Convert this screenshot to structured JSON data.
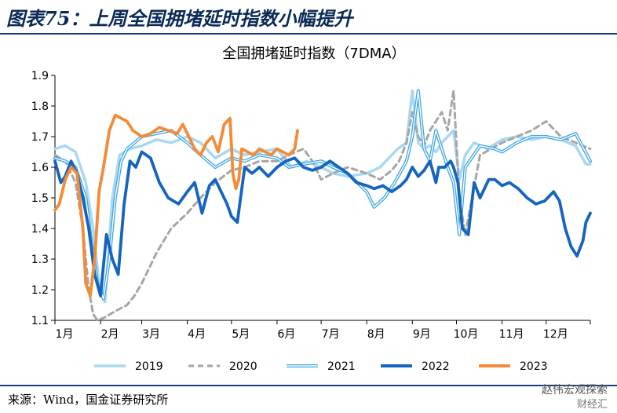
{
  "figure_title": "图表75：上周全国拥堵延时指数小幅提升",
  "source": "来源：Wind，国金证券研究所",
  "watermark": {
    "line1": "赵伟宏观探索",
    "line2": "财经汇"
  },
  "colors": {
    "2019": "#a9d8f2",
    "2020": "#a6a6a6",
    "2021": "#3fa7e0",
    "2022": "#1565c0",
    "2023": "#f28c38"
  },
  "chart_data": {
    "type": "line",
    "title": "全国拥堵延时指数（7DMA）",
    "xlabel": "",
    "ylabel": "",
    "x_unit": "day_of_year",
    "month_ticks": [
      {
        "label": "1月",
        "day": 1
      },
      {
        "label": "2月",
        "day": 32
      },
      {
        "label": "3月",
        "day": 60
      },
      {
        "label": "4月",
        "day": 91
      },
      {
        "label": "5月",
        "day": 121
      },
      {
        "label": "6月",
        "day": 152
      },
      {
        "label": "7月",
        "day": 182
      },
      {
        "label": "8月",
        "day": 213
      },
      {
        "label": "9月",
        "day": 244
      },
      {
        "label": "10月",
        "day": 274
      },
      {
        "label": "11月",
        "day": 305
      },
      {
        "label": "12月",
        "day": 335
      }
    ],
    "ylim": [
      1.1,
      1.9
    ],
    "yticks": [
      "1.1",
      "1.2",
      "1.3",
      "1.4",
      "1.5",
      "1.6",
      "1.7",
      "1.8",
      "1.9"
    ],
    "legend_position": "bottom",
    "series": [
      {
        "name": "2019",
        "style": "solid-light",
        "x": [
          1,
          8,
          15,
          22,
          27,
          31,
          35,
          40,
          45,
          52,
          60,
          70,
          80,
          91,
          100,
          110,
          121,
          130,
          140,
          152,
          162,
          172,
          182,
          190,
          200,
          213,
          222,
          228,
          234,
          240,
          244,
          248,
          252,
          256,
          260,
          264,
          268,
          272,
          276,
          280,
          286,
          295,
          305,
          315,
          325,
          335,
          345,
          355,
          362,
          365
        ],
        "y": [
          1.66,
          1.67,
          1.65,
          1.55,
          1.4,
          1.22,
          1.16,
          1.5,
          1.64,
          1.66,
          1.67,
          1.69,
          1.68,
          1.7,
          1.68,
          1.63,
          1.66,
          1.64,
          1.65,
          1.66,
          1.6,
          1.62,
          1.6,
          1.58,
          1.57,
          1.58,
          1.6,
          1.63,
          1.66,
          1.68,
          1.85,
          1.68,
          1.66,
          1.67,
          1.65,
          1.68,
          1.7,
          1.72,
          1.56,
          1.64,
          1.68,
          1.66,
          1.69,
          1.7,
          1.69,
          1.7,
          1.69,
          1.67,
          1.61,
          1.61
        ]
      },
      {
        "name": "2020",
        "style": "dashed",
        "x": [
          1,
          8,
          15,
          20,
          24,
          27,
          30,
          35,
          42,
          50,
          55,
          60,
          70,
          80,
          91,
          100,
          110,
          121,
          130,
          140,
          152,
          160,
          170,
          176,
          182,
          190,
          200,
          213,
          222,
          230,
          235,
          240,
          244,
          248,
          252,
          256,
          260,
          264,
          268,
          272,
          276,
          280,
          290,
          305,
          315,
          325,
          335,
          345,
          355,
          365
        ],
        "y": [
          1.64,
          1.62,
          1.55,
          1.4,
          1.2,
          1.12,
          1.1,
          1.11,
          1.13,
          1.15,
          1.18,
          1.22,
          1.32,
          1.4,
          1.45,
          1.5,
          1.55,
          1.59,
          1.6,
          1.62,
          1.62,
          1.64,
          1.66,
          1.62,
          1.56,
          1.58,
          1.6,
          1.58,
          1.56,
          1.59,
          1.62,
          1.68,
          1.78,
          1.7,
          1.67,
          1.72,
          1.75,
          1.78,
          1.72,
          1.85,
          1.5,
          1.38,
          1.64,
          1.68,
          1.7,
          1.72,
          1.75,
          1.7,
          1.68,
          1.66
        ]
      },
      {
        "name": "2021",
        "style": "double",
        "x": [
          1,
          8,
          15,
          22,
          26,
          30,
          34,
          38,
          42,
          46,
          50,
          55,
          60,
          70,
          80,
          91,
          100,
          110,
          121,
          130,
          140,
          152,
          160,
          170,
          182,
          190,
          200,
          213,
          218,
          225,
          232,
          240,
          244,
          248,
          252,
          256,
          260,
          264,
          268,
          272,
          276,
          280,
          290,
          300,
          305,
          315,
          325,
          335,
          345,
          355,
          365
        ],
        "y": [
          1.63,
          1.62,
          1.6,
          1.5,
          1.35,
          1.22,
          1.17,
          1.3,
          1.5,
          1.62,
          1.66,
          1.68,
          1.7,
          1.71,
          1.72,
          1.68,
          1.64,
          1.6,
          1.63,
          1.62,
          1.64,
          1.63,
          1.6,
          1.61,
          1.62,
          1.6,
          1.58,
          1.52,
          1.47,
          1.5,
          1.55,
          1.62,
          1.7,
          1.85,
          1.66,
          1.62,
          1.72,
          1.66,
          1.6,
          1.55,
          1.38,
          1.6,
          1.67,
          1.66,
          1.65,
          1.68,
          1.7,
          1.7,
          1.69,
          1.71,
          1.62
        ]
      },
      {
        "name": "2022",
        "style": "solid-bold",
        "x": [
          1,
          5,
          8,
          12,
          16,
          20,
          24,
          28,
          32,
          36,
          40,
          44,
          48,
          52,
          56,
          60,
          66,
          72,
          78,
          85,
          91,
          96,
          101,
          106,
          110,
          114,
          118,
          121,
          125,
          130,
          135,
          140,
          146,
          152,
          158,
          164,
          170,
          176,
          182,
          188,
          194,
          200,
          206,
          213,
          218,
          224,
          230,
          236,
          240,
          244,
          248,
          252,
          256,
          260,
          262,
          266,
          270,
          272,
          275,
          278,
          282,
          286,
          290,
          296,
          300,
          305,
          310,
          316,
          322,
          328,
          334,
          340,
          344,
          348,
          352,
          356,
          360,
          362,
          365
        ],
        "y": [
          1.62,
          1.55,
          1.57,
          1.62,
          1.58,
          1.5,
          1.4,
          1.25,
          1.18,
          1.38,
          1.3,
          1.25,
          1.48,
          1.62,
          1.6,
          1.65,
          1.63,
          1.55,
          1.5,
          1.48,
          1.52,
          1.55,
          1.45,
          1.54,
          1.56,
          1.52,
          1.48,
          1.44,
          1.42,
          1.6,
          1.58,
          1.6,
          1.57,
          1.6,
          1.62,
          1.63,
          1.6,
          1.59,
          1.6,
          1.62,
          1.6,
          1.58,
          1.55,
          1.54,
          1.53,
          1.54,
          1.52,
          1.54,
          1.56,
          1.6,
          1.57,
          1.59,
          1.62,
          1.55,
          1.6,
          1.6,
          1.62,
          1.6,
          1.55,
          1.4,
          1.38,
          1.55,
          1.5,
          1.56,
          1.56,
          1.54,
          1.55,
          1.53,
          1.5,
          1.48,
          1.49,
          1.52,
          1.49,
          1.4,
          1.34,
          1.31,
          1.36,
          1.42,
          1.45
        ]
      },
      {
        "name": "2023",
        "style": "solid-bold",
        "x": [
          1,
          4,
          8,
          12,
          16,
          20,
          22,
          25,
          28,
          31,
          34,
          38,
          42,
          46,
          50,
          54,
          60,
          66,
          72,
          78,
          84,
          88,
          92,
          96,
          100,
          104,
          108,
          112,
          116,
          120,
          122,
          124,
          126,
          128,
          132,
          136,
          140,
          144,
          148,
          152,
          156,
          160,
          164,
          166
        ],
        "y": [
          1.46,
          1.48,
          1.56,
          1.6,
          1.58,
          1.4,
          1.22,
          1.18,
          1.3,
          1.52,
          1.6,
          1.72,
          1.77,
          1.76,
          1.75,
          1.72,
          1.7,
          1.71,
          1.73,
          1.72,
          1.71,
          1.74,
          1.7,
          1.66,
          1.64,
          1.68,
          1.7,
          1.65,
          1.74,
          1.76,
          1.58,
          1.53,
          1.56,
          1.66,
          1.65,
          1.64,
          1.66,
          1.65,
          1.64,
          1.66,
          1.65,
          1.64,
          1.66,
          1.72
        ]
      }
    ]
  }
}
